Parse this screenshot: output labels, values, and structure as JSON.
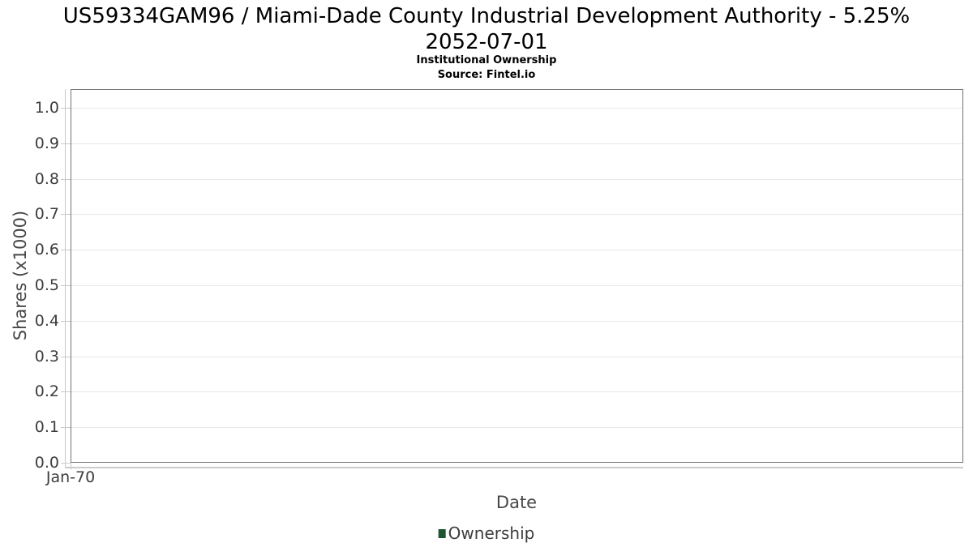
{
  "chart_data": {
    "type": "line",
    "title_line1": "US59334GAM96 / Miami-Dade County Industrial Development Authority - 5.25%",
    "title_line2": "2052-07-01",
    "subtitle": "Institutional Ownership",
    "source": "Source: Fintel.io",
    "xlabel": "Date",
    "ylabel": "Shares (x1000)",
    "x_tick_labels": [
      "Jan-70"
    ],
    "y_tick_labels": [
      "0.0",
      "0.1",
      "0.2",
      "0.3",
      "0.4",
      "0.5",
      "0.6",
      "0.7",
      "0.8",
      "0.9",
      "1.0"
    ],
    "ylim": [
      0.0,
      1.05
    ],
    "grid": "horizontal",
    "legend": {
      "position": "bottom-center",
      "entries": [
        {
          "label": "Ownership",
          "color": "#1e5631"
        }
      ]
    },
    "series": [
      {
        "name": "Ownership",
        "color": "#1e5631",
        "x": [],
        "values": []
      }
    ],
    "colors": {
      "axis_border": "#737373",
      "axis_line": "#c9c9c9",
      "gridline": "#e8e8e8",
      "tick": "#c9c9c9",
      "text": "#3d3d3d"
    }
  }
}
